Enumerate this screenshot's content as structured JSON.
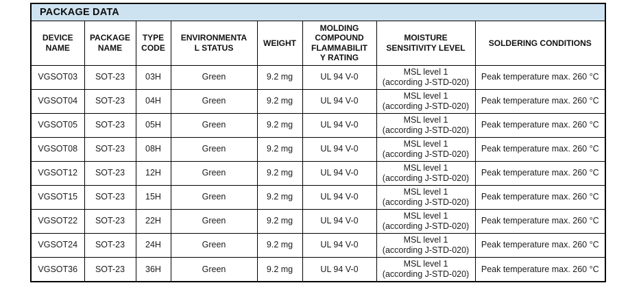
{
  "title": "PACKAGE DATA",
  "colors": {
    "title_bg": "#cee3f1",
    "border": "#000000",
    "text": "#1a1a1a"
  },
  "table": {
    "columns": [
      {
        "key": "device-name",
        "label": "DEVICE\nNAME"
      },
      {
        "key": "package-name",
        "label": "PACKAGE\nNAME"
      },
      {
        "key": "type-code",
        "label": "TYPE\nCODE"
      },
      {
        "key": "environmental-status",
        "label": "ENVIRONMENTA\nL STATUS"
      },
      {
        "key": "weight",
        "label": "WEIGHT"
      },
      {
        "key": "molding-compound-flammability-rating",
        "label": "MOLDING\nCOMPOUND\nFLAMMABILIT\nY RATING"
      },
      {
        "key": "moisture-sensitivity-level",
        "label": "MOISTURE\nSENSITIVITY LEVEL"
      },
      {
        "key": "soldering-conditions",
        "label": "SOLDERING CONDITIONS"
      }
    ],
    "rows": [
      [
        "VGSOT03",
        "SOT-23",
        "03H",
        "Green",
        "9.2 mg",
        "UL 94 V-0",
        "MSL level 1\n(according J-STD-020)",
        "Peak temperature max. 260 °C"
      ],
      [
        "VGSOT04",
        "SOT-23",
        "04H",
        "Green",
        "9.2 mg",
        "UL 94 V-0",
        "MSL level 1\n(according J-STD-020)",
        "Peak temperature max. 260 °C"
      ],
      [
        "VGSOT05",
        "SOT-23",
        "05H",
        "Green",
        "9.2 mg",
        "UL 94 V-0",
        "MSL level 1\n(according J-STD-020)",
        "Peak temperature max. 260 °C"
      ],
      [
        "VGSOT08",
        "SOT-23",
        "08H",
        "Green",
        "9.2 mg",
        "UL 94 V-0",
        "MSL level 1\n(according J-STD-020)",
        "Peak temperature max. 260 °C"
      ],
      [
        "VGSOT12",
        "SOT-23",
        "12H",
        "Green",
        "9.2 mg",
        "UL 94 V-0",
        "MSL level 1\n(according J-STD-020)",
        "Peak temperature max. 260 °C"
      ],
      [
        "VGSOT15",
        "SOT-23",
        "15H",
        "Green",
        "9.2 mg",
        "UL 94 V-0",
        "MSL level 1\n(according J-STD-020)",
        "Peak temperature max. 260 °C"
      ],
      [
        "VGSOT22",
        "SOT-23",
        "22H",
        "Green",
        "9.2 mg",
        "UL 94 V-0",
        "MSL level 1\n(according J-STD-020)",
        "Peak temperature max. 260 °C"
      ],
      [
        "VGSOT24",
        "SOT-23",
        "24H",
        "Green",
        "9.2 mg",
        "UL 94 V-0",
        "MSL level 1\n(according J-STD-020)",
        "Peak temperature max. 260 °C"
      ],
      [
        "VGSOT36",
        "SOT-23",
        "36H",
        "Green",
        "9.2 mg",
        "UL 94 V-0",
        "MSL level 1\n(according J-STD-020)",
        "Peak temperature max. 260 °C"
      ]
    ]
  }
}
